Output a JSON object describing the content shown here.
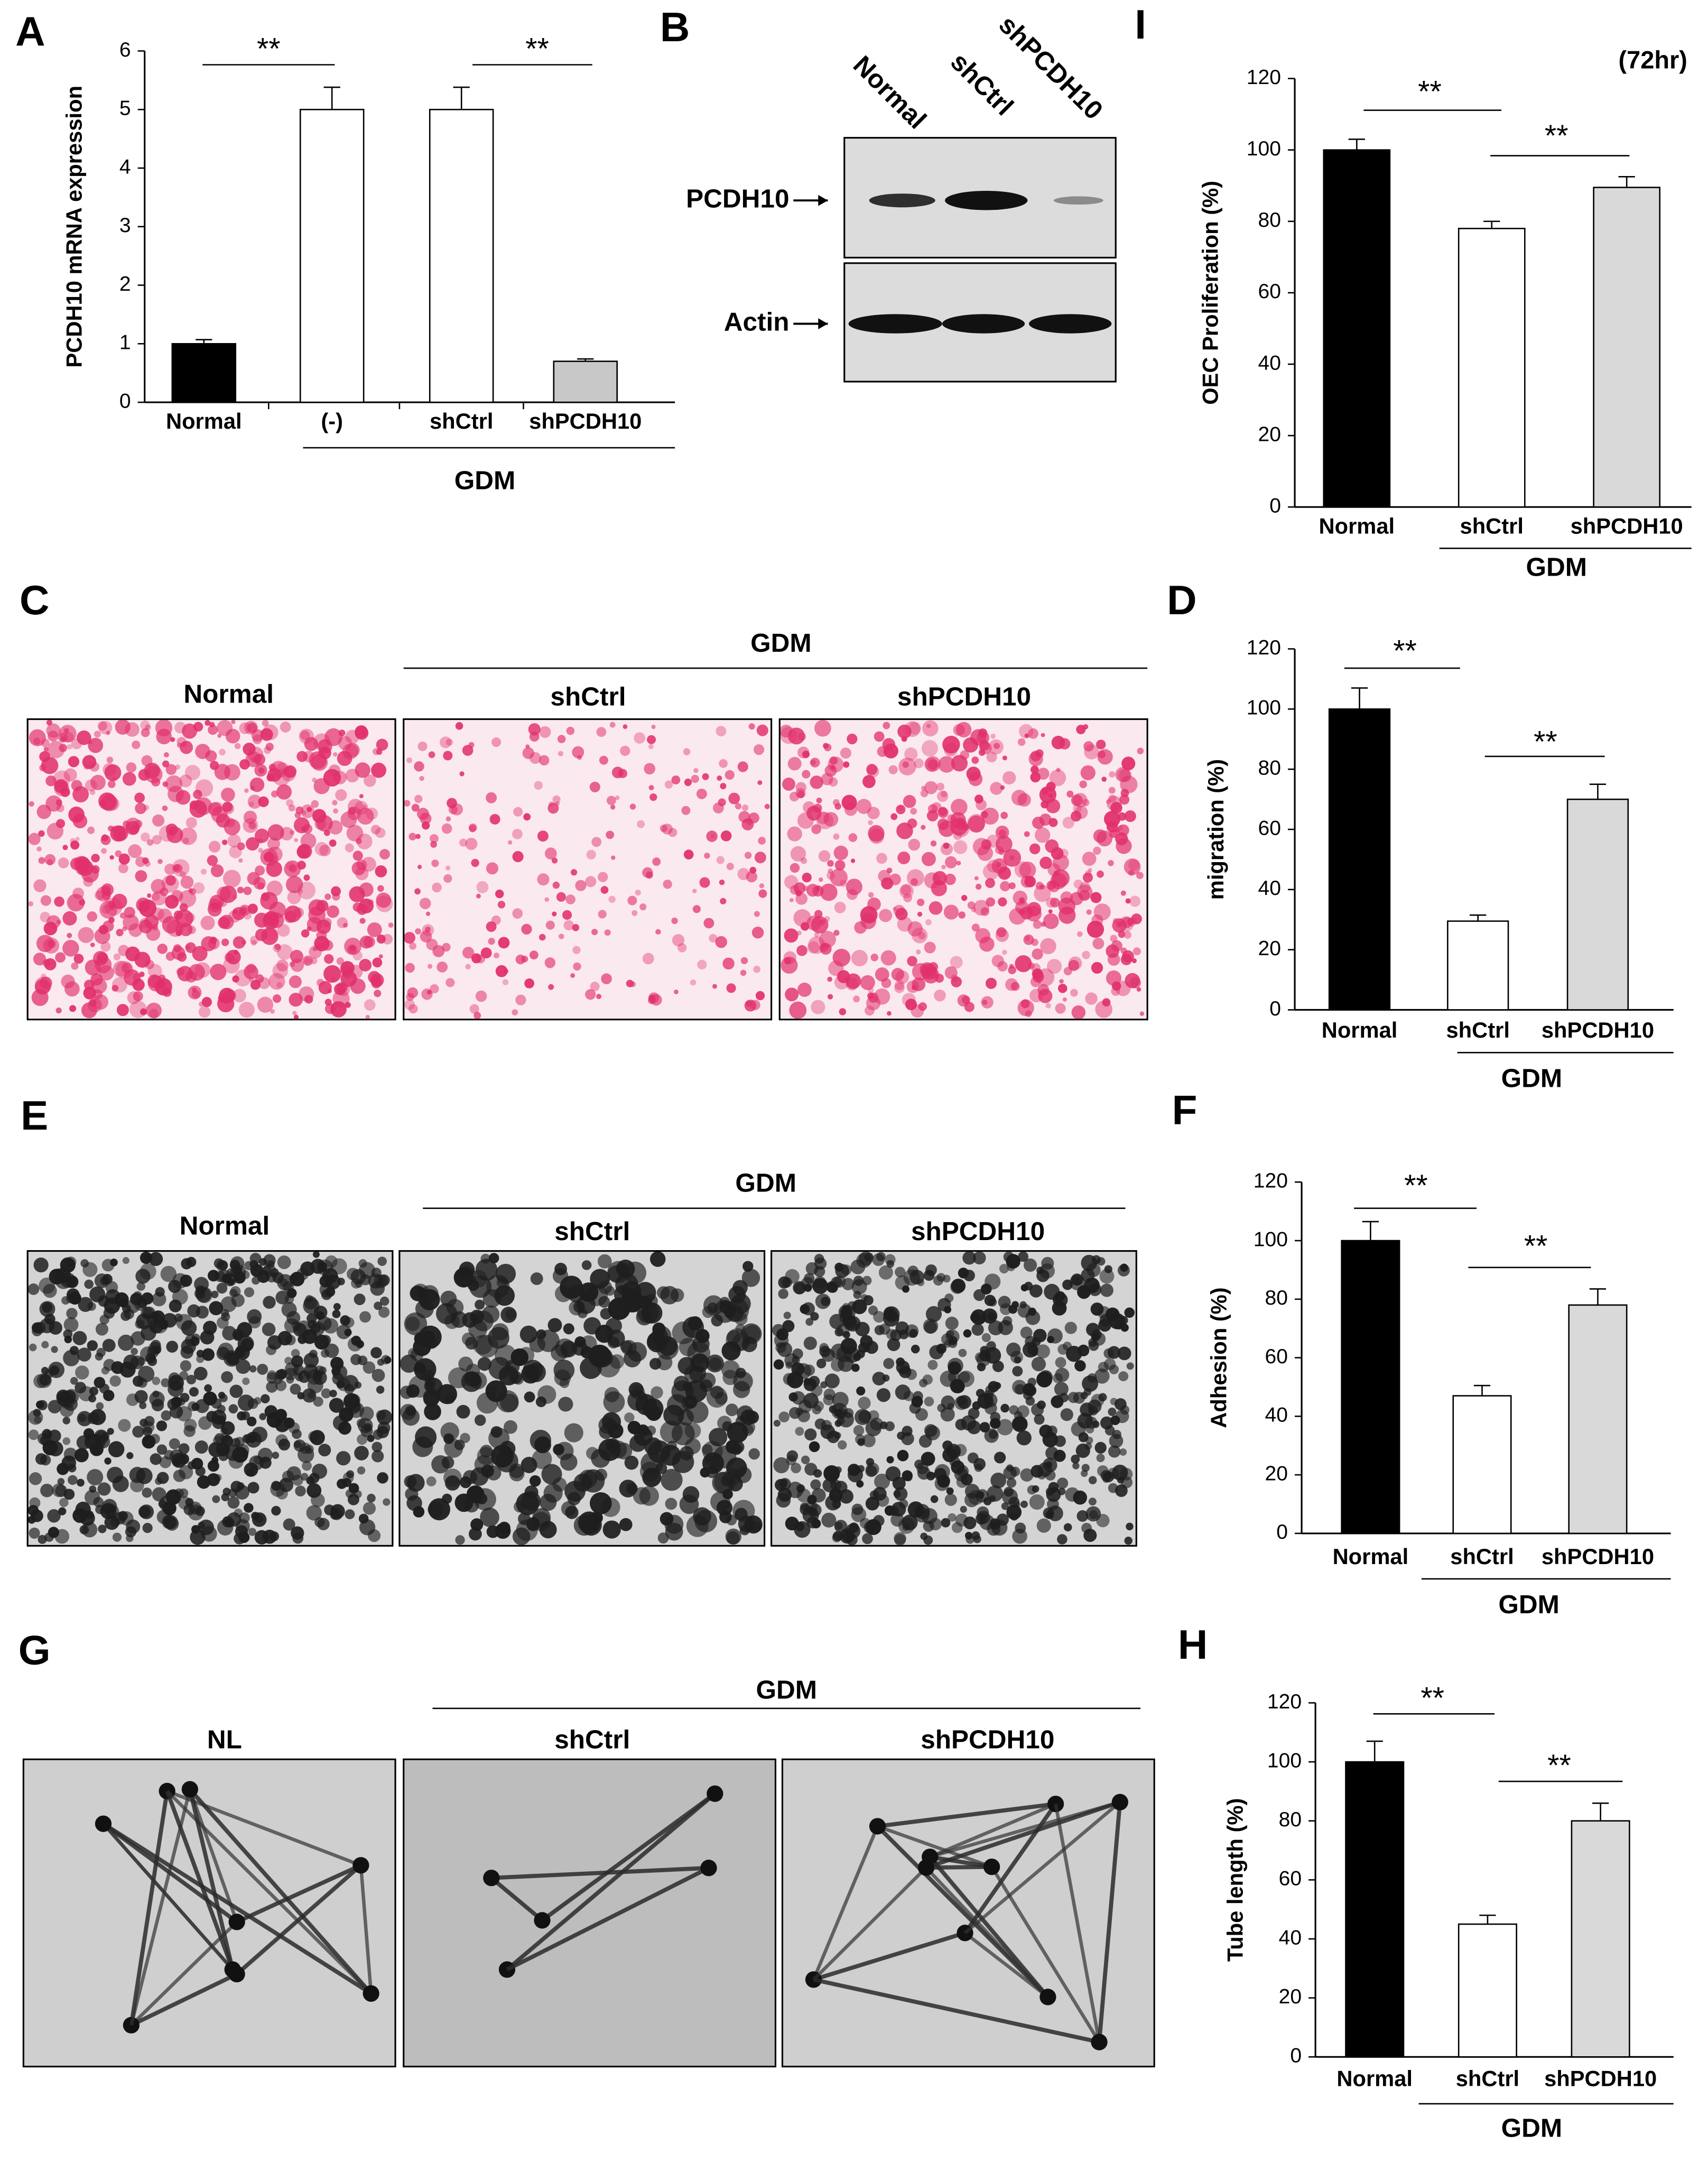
{
  "chart_data": [
    {
      "panel": "A",
      "type": "bar",
      "ylabel": "PCDH10 mRNA expression",
      "categories": [
        "Normal",
        "(-)",
        "shCtrl",
        "shPCDH10"
      ],
      "values": [
        1,
        5,
        5,
        0.7
      ],
      "errors": [
        0.07,
        0.38,
        0.38,
        0.04
      ],
      "colors": [
        "#000000",
        "#ffffff",
        "#ffffff",
        "#c8c8c8"
      ],
      "ylim": [
        0,
        6
      ],
      "yticks": [
        0,
        1,
        2,
        3,
        4,
        5,
        6
      ],
      "group_label": "GDM",
      "annotations": [
        "**",
        "**"
      ]
    },
    {
      "panel": "I",
      "type": "bar",
      "ylabel": "OEC Proliferation (%)",
      "note": "(72hr)",
      "categories": [
        "Normal",
        "shCtrl",
        "shPCDH10"
      ],
      "values": [
        100,
        78,
        89.5
      ],
      "errors": [
        3,
        2,
        3
      ],
      "colors": [
        "#000000",
        "#ffffff",
        "#d9d9d9"
      ],
      "ylim": [
        0,
        120
      ],
      "yticks": [
        0,
        20,
        40,
        60,
        80,
        100,
        120
      ],
      "group_label": "GDM",
      "annotations": [
        "**",
        "**"
      ]
    },
    {
      "panel": "D",
      "type": "bar",
      "ylabel": "migration (%)",
      "categories": [
        "Normal",
        "shCtrl",
        "shPCDH10"
      ],
      "values": [
        100,
        29.5,
        70
      ],
      "errors": [
        7,
        2,
        5
      ],
      "colors": [
        "#000000",
        "#ffffff",
        "#d9d9d9"
      ],
      "ylim": [
        0,
        120
      ],
      "yticks": [
        0,
        20,
        40,
        60,
        80,
        100,
        120
      ],
      "group_label": "GDM",
      "annotations": [
        "**",
        "**"
      ]
    },
    {
      "panel": "F",
      "type": "bar",
      "ylabel": "Adhesion (%)",
      "categories": [
        "Normal",
        "shCtrl",
        "shPCDH10"
      ],
      "values": [
        100,
        47,
        78
      ],
      "errors": [
        6.5,
        3.5,
        5.5
      ],
      "colors": [
        "#000000",
        "#ffffff",
        "#d9d9d9"
      ],
      "ylim": [
        0,
        120
      ],
      "yticks": [
        0,
        20,
        40,
        60,
        80,
        100,
        120
      ],
      "group_label": "GDM",
      "annotations": [
        "**",
        "**"
      ]
    },
    {
      "panel": "H",
      "type": "bar",
      "ylabel": "Tube length (%)",
      "categories": [
        "Normal",
        "shCtrl",
        "shPCDH10"
      ],
      "values": [
        100,
        45,
        80
      ],
      "errors": [
        7,
        3,
        6
      ],
      "colors": [
        "#000000",
        "#ffffff",
        "#d9d9d9"
      ],
      "ylim": [
        0,
        120
      ],
      "yticks": [
        0,
        20,
        40,
        60,
        80,
        100,
        120
      ],
      "group_label": "GDM",
      "annotations": [
        "**",
        "**"
      ]
    }
  ],
  "panels": [
    {
      "letter": "B",
      "lanes": [
        "Normal",
        "shCtrl",
        "shPCDH10"
      ],
      "bands": [
        "PCDH10",
        "Actin"
      ]
    },
    {
      "letter": "C",
      "group_label": "GDM",
      "labels": [
        "Normal",
        "shCtrl",
        "shPCDH10"
      ]
    },
    {
      "letter": "E",
      "group_label": "GDM",
      "labels": [
        "Normal",
        "shCtrl",
        "shPCDH10"
      ]
    },
    {
      "letter": "G",
      "group_label": "GDM",
      "labels": [
        "NL",
        "shCtrl",
        "shPCDH10"
      ]
    }
  ]
}
